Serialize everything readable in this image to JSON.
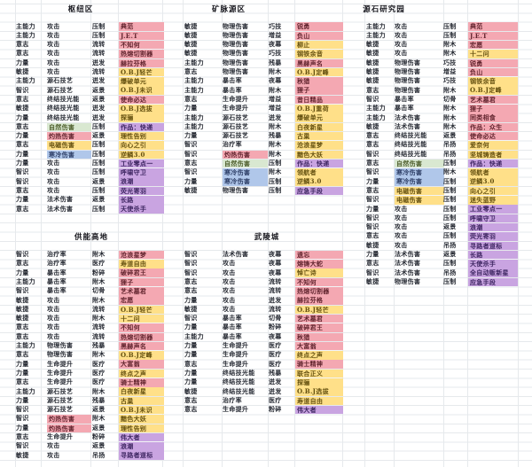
{
  "app": {
    "kind": "spreadsheet-table"
  },
  "palette": {
    "pink": "#f4a8b2",
    "yellow": "#ffe089",
    "purple": "#c9a4e1",
    "green": "#d9e8d1",
    "blue": "#b0c7ea"
  },
  "palette_text": {
    "pink": "#61242e",
    "yellow": "#64500f",
    "purple": "#3c2460",
    "green": "#4e5e2c",
    "blue": "#2d3e66"
  },
  "sections": [
    {
      "title": "枢纽区",
      "rows": [
        [
          "主能力",
          "攻击",
          "压制",
          "典范",
          "pink",
          ""
        ],
        [
          "主能力",
          "攻击",
          "压制",
          "J.E.T",
          "pink",
          ""
        ],
        [
          "意志",
          "攻击",
          "流转",
          "不知何",
          "pink",
          ""
        ],
        [
          "意志",
          "攻击",
          "流转",
          "热熔切割器",
          "pink",
          ""
        ],
        [
          "力量",
          "攻击",
          "迸发",
          "赫拉芬格",
          "pink",
          ""
        ],
        [
          "敏捷",
          "攻击",
          "流转",
          "O.B.J轻芒",
          "yellow",
          ""
        ],
        [
          "主能力",
          "源石技艺",
          "迸发",
          "爆破单元",
          "yellow",
          ""
        ],
        [
          "智识",
          "源石技艺",
          "返景",
          "O.B.J未识",
          "yellow",
          ""
        ],
        [
          "意志",
          "终结技光能",
          "返景",
          "使命必达",
          "pink",
          ""
        ],
        [
          "敏捷",
          "终结技光能",
          "迸发",
          "O.B.J选拔",
          "yellow",
          ""
        ],
        [
          "力量",
          "终结技光能",
          "迸发",
          "探骊",
          "yellow",
          ""
        ],
        [
          "意志",
          "自然伤害",
          "压制",
          "作品：快递",
          "purple",
          "green"
        ],
        [
          "力量",
          "灼热伤害",
          "返景",
          "理性告别",
          "yellow",
          "pink"
        ],
        [
          "意志",
          "电磁伤害",
          "压制",
          "向心之引",
          "yellow",
          "yellow"
        ],
        [
          "力量",
          "寒冷伤害",
          "压制",
          "逆鳞3.0",
          "yellow",
          "blue"
        ],
        [
          "力量",
          "攻击",
          "压制",
          "工业零点一",
          "purple",
          ""
        ],
        [
          "智识",
          "攻击",
          "压制",
          "呼啸守卫",
          "purple",
          ""
        ],
        [
          "智识",
          "攻击",
          "返景",
          "浪潮",
          "purple",
          ""
        ],
        [
          "意志",
          "攻击",
          "压制",
          "荧光寄羽",
          "purple",
          ""
        ],
        [
          "力量",
          "法术伤害",
          "返景",
          "长路",
          "purple",
          ""
        ],
        [
          "意志",
          "法术伤害",
          "压制",
          "天使杀手",
          "purple",
          ""
        ]
      ]
    },
    {
      "title": "矿脉源区",
      "rows": [
        [
          "敏捷",
          "物理伤害",
          "巧技",
          "锐勇",
          "pink",
          ""
        ],
        [
          "敏捷",
          "物理伤害",
          "增益",
          "负山",
          "pink",
          ""
        ],
        [
          "敏捷",
          "物理伤害",
          "夜幕",
          "柳止",
          "yellow",
          ""
        ],
        [
          "敏捷",
          "物理伤害",
          "巧技",
          "钢铁余音",
          "yellow",
          ""
        ],
        [
          "主能力",
          "物理伤害",
          "残暴",
          "黑赫声名",
          "pink",
          ""
        ],
        [
          "意志",
          "物理伤害",
          "附木",
          "O.B.J定峰",
          "yellow",
          ""
        ],
        [
          "主能力",
          "暴击率",
          "夜幕",
          "秋猎",
          "pink",
          ""
        ],
        [
          "主能力",
          "暴击率",
          "附木",
          "狸子",
          "pink",
          ""
        ],
        [
          "意志",
          "生命提升",
          "增益",
          "昔日精品",
          "pink",
          ""
        ],
        [
          "力量",
          "生命提升",
          "增益",
          "O.B.J重荷",
          "yellow",
          ""
        ],
        [
          "主能力",
          "源石技艺",
          "迸发",
          "爆破单元",
          "yellow",
          ""
        ],
        [
          "主能力",
          "源石技艺",
          "附木",
          "白夜新星",
          "yellow",
          ""
        ],
        [
          "力量",
          "源石技艺",
          "残暴",
          "古巢",
          "yellow",
          ""
        ],
        [
          "智识",
          "治疗率",
          "附木",
          "沧浪星梦",
          "yellow",
          ""
        ],
        [
          "智识",
          "灼热伤害",
          "附木",
          "黯色大妖",
          "yellow",
          "pink"
        ],
        [
          "意志",
          "自然伤害",
          "压制",
          "作品：快递",
          "purple",
          "green"
        ],
        [
          "智识",
          "寒冷伤害",
          "附木",
          "领航者",
          "yellow",
          "blue"
        ],
        [
          "力量",
          "寒冷伤害",
          "压制",
          "逆鳞3.0",
          "yellow",
          "blue"
        ],
        [
          "敏捷",
          "物理伤害",
          "压制",
          "应急手段",
          "purple",
          ""
        ]
      ]
    },
    {
      "title": "源石研究园",
      "rows": [
        [
          "主能力",
          "攻击",
          "压制",
          "典范",
          "pink",
          ""
        ],
        [
          "主能力",
          "攻击",
          "压制",
          "J.E.T",
          "pink",
          ""
        ],
        [
          "敏捷",
          "攻击",
          "附木",
          "宏愿",
          "pink",
          ""
        ],
        [
          "敏捷",
          "攻击",
          "附木",
          "十二问",
          "yellow",
          ""
        ],
        [
          "敏捷",
          "物理伤害",
          "巧技",
          "锐勇",
          "pink",
          ""
        ],
        [
          "敏捷",
          "物理伤害",
          "增益",
          "负山",
          "pink",
          ""
        ],
        [
          "敏捷",
          "物理伤害",
          "巧技",
          "钢铁余音",
          "yellow",
          ""
        ],
        [
          "意志",
          "物理伤害",
          "附木",
          "O.B.J定峰",
          "yellow",
          ""
        ],
        [
          "智识",
          "暴击率",
          "切骨",
          "艺术墓君",
          "pink",
          ""
        ],
        [
          "主能力",
          "暴击率",
          "附木",
          "狸子",
          "pink",
          ""
        ],
        [
          "主能力",
          "法术伤害",
          "附木",
          "同类相食",
          "pink",
          ""
        ],
        [
          "敏捷",
          "法术伤害",
          "附木",
          "作品：众生",
          "pink",
          ""
        ],
        [
          "意志",
          "终结技光能",
          "返景",
          "使命必达",
          "pink",
          ""
        ],
        [
          "意志",
          "终结技光能",
          "吊扬",
          "爱奈何",
          "yellow",
          ""
        ],
        [
          "智识",
          "终结技光能",
          "吊扬",
          "坚城铸造者",
          "yellow",
          ""
        ],
        [
          "意志",
          "自然伤害",
          "压制",
          "作品：快递",
          "purple",
          "green"
        ],
        [
          "智识",
          "寒冷伤害",
          "附木",
          "领航者",
          "yellow",
          "blue"
        ],
        [
          "力量",
          "寒冷伤害",
          "压制",
          "逆鳞3.0",
          "yellow",
          "blue"
        ],
        [
          "意志",
          "电磁伤害",
          "压制",
          "向心之引",
          "yellow",
          "yellow"
        ],
        [
          "智识",
          "电磁伤害",
          "压制",
          "迷失蓝野",
          "yellow",
          "yellow"
        ],
        [
          "力量",
          "攻击",
          "压制",
          "工业零点一",
          "purple",
          ""
        ],
        [
          "智识",
          "攻击",
          "压制",
          "呼啸守卫",
          "purple",
          ""
        ],
        [
          "智识",
          "攻击",
          "返景",
          "浪潮",
          "purple",
          ""
        ],
        [
          "意志",
          "攻击",
          "压制",
          "荧光寄羽",
          "purple",
          ""
        ],
        [
          "敏捷",
          "攻击",
          "吊扬",
          "寻路者道标",
          "purple",
          ""
        ],
        [
          "力量",
          "法术伤害",
          "返景",
          "长路",
          "purple",
          ""
        ],
        [
          "意志",
          "法术伤害",
          "压制",
          "天使杀手",
          "purple",
          ""
        ],
        [
          "智识",
          "法术伤害",
          "吊扬",
          "全自动贩新星",
          "purple",
          ""
        ],
        [
          "敏捷",
          "物理伤害",
          "压制",
          "应急手段",
          "purple",
          ""
        ]
      ]
    },
    {
      "title": "供能高地",
      "rows": [
        [
          "智识",
          "治疗率",
          "附木",
          "沧浪星梦",
          "pink",
          ""
        ],
        [
          "意志",
          "治疗率",
          "医疗",
          "寿道自由",
          "yellow",
          ""
        ],
        [
          "力量",
          "暴击率",
          "粉碎",
          "破碎君王",
          "pink",
          ""
        ],
        [
          "主能力",
          "暴击率",
          "附木",
          "狸子",
          "pink",
          ""
        ],
        [
          "智识",
          "暴击率",
          "切骨",
          "艺术墓君",
          "pink",
          ""
        ],
        [
          "敏捷",
          "攻击",
          "附木",
          "宏愿",
          "pink",
          ""
        ],
        [
          "敏捷",
          "攻击",
          "流转",
          "O.B.J轻芒",
          "yellow",
          ""
        ],
        [
          "敏捷",
          "攻击",
          "附木",
          "十二问",
          "yellow",
          ""
        ],
        [
          "意志",
          "攻击",
          "流转",
          "不知何",
          "pink",
          ""
        ],
        [
          "意志",
          "攻击",
          "流转",
          "热熔切割器",
          "pink",
          ""
        ],
        [
          "主能力",
          "物理伤害",
          "残暴",
          "黑赫声名",
          "pink",
          ""
        ],
        [
          "意志",
          "物理伤害",
          "附木",
          "O.B.J定峰",
          "yellow",
          ""
        ],
        [
          "力量",
          "生命提升",
          "医疗",
          "大富翁",
          "pink",
          ""
        ],
        [
          "力量",
          "生命提升",
          "医疗",
          "终点之声",
          "yellow",
          ""
        ],
        [
          "意志",
          "生命提升",
          "医疗",
          "骑士精神",
          "pink",
          ""
        ],
        [
          "主能力",
          "源石技艺",
          "附木",
          "白夜新星",
          "yellow",
          ""
        ],
        [
          "力量",
          "源石技艺",
          "残暴",
          "古巢",
          "yellow",
          ""
        ],
        [
          "智识",
          "源石技艺",
          "返景",
          "O.B.J未识",
          "yellow",
          ""
        ],
        [
          "智识",
          "灼热伤害",
          "附木",
          "黯色大妖",
          "yellow",
          "pink"
        ],
        [
          "力量",
          "灼热伤害",
          "返景",
          "理性告别",
          "yellow",
          "pink"
        ],
        [
          "意志",
          "生命提升",
          "粉碎",
          "伟大者",
          "purple",
          ""
        ],
        [
          "智识",
          "攻击",
          "返景",
          "浪潮",
          "purple",
          ""
        ],
        [
          "敏捷",
          "攻击",
          "吊扬",
          "寻路者道标",
          "purple",
          ""
        ]
      ]
    },
    {
      "title": "武陵城",
      "rows": [
        [
          "智识",
          "法术伤害",
          "夜幕",
          "遗忘",
          "pink",
          ""
        ],
        [
          "智识",
          "攻击",
          "夜幕",
          "熔铸大蛇",
          "pink",
          ""
        ],
        [
          "智识",
          "攻击",
          "夜幕",
          "悼亡诗",
          "yellow",
          ""
        ],
        [
          "意志",
          "攻击",
          "流转",
          "不知何",
          "pink",
          ""
        ],
        [
          "意志",
          "攻击",
          "流转",
          "热熔切割器",
          "pink",
          ""
        ],
        [
          "力量",
          "攻击",
          "迸发",
          "赫拉芬格",
          "pink",
          ""
        ],
        [
          "敏捷",
          "攻击",
          "流转",
          "O.B.J轻芒",
          "yellow",
          ""
        ],
        [
          "智识",
          "暴击率",
          "切骨",
          "艺术墓君",
          "pink",
          ""
        ],
        [
          "力量",
          "暴击率",
          "粉碎",
          "破碎君王",
          "pink",
          ""
        ],
        [
          "主能力",
          "暴击率",
          "夜幕",
          "秋猎",
          "pink",
          ""
        ],
        [
          "力量",
          "生命提升",
          "医疗",
          "大富翁",
          "pink",
          ""
        ],
        [
          "力量",
          "生命提升",
          "医疗",
          "终点之声",
          "yellow",
          ""
        ],
        [
          "意志",
          "生命提升",
          "医疗",
          "骑士精神",
          "pink",
          ""
        ],
        [
          "力量",
          "终结技光能",
          "残暴",
          "联合正义",
          "yellow",
          ""
        ],
        [
          "力量",
          "终结技光能",
          "迸发",
          "探骊",
          "yellow",
          ""
        ],
        [
          "敏捷",
          "终结技光能",
          "迸发",
          "O.B.J选拔",
          "yellow",
          ""
        ],
        [
          "意志",
          "治疗率",
          "医疗",
          "寿道自由",
          "yellow",
          ""
        ],
        [
          "意志",
          "生命提升",
          "粉碎",
          "伟大者",
          "purple",
          ""
        ]
      ]
    }
  ]
}
